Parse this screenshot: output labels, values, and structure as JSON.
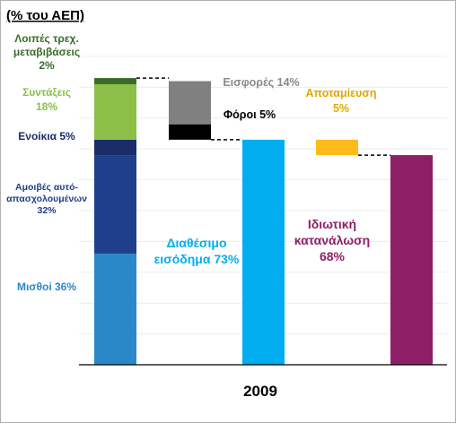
{
  "chart_data": {
    "type": "bar",
    "title": "(% του ΑΕΠ)",
    "xlabel": "2009",
    "ylabel": "",
    "ylim": [
      0,
      100
    ],
    "grid": true,
    "columns": [
      {
        "name": "income-sources",
        "segments": [
          {
            "label_lines": [
              "Μισθοί 36%"
            ],
            "value": 36,
            "color": "#2a88c8",
            "label_color": "#2a88c8"
          },
          {
            "label_lines": [
              "Αμοιβές αυτό-",
              "απασχολουμένων",
              "32%"
            ],
            "value": 32,
            "color": "#203f8a",
            "label_color": "#203f8a"
          },
          {
            "label_lines": [
              "Ενοίκια 5%"
            ],
            "value": 5,
            "color": "#1a2c6a",
            "label_color": "#1a2c6a"
          },
          {
            "label_lines": [
              "Συντάξεις",
              "18%"
            ],
            "value": 18,
            "color": "#8cbf48",
            "label_color": "#8cbf48"
          },
          {
            "label_lines": [
              "Λοιπές τρεχ.",
              "μεταβιβάσεις",
              "2%"
            ],
            "value": 2,
            "color": "#3a6b28",
            "label_color": "#3a6b28"
          }
        ]
      },
      {
        "name": "deductions",
        "segments": [
          {
            "label_lines": [
              "Φόροι 5%"
            ],
            "value": 5,
            "color": "#000000",
            "label_color": "#000000",
            "start": 73
          },
          {
            "label_lines": [
              "Εισφορές 14%"
            ],
            "value": 14,
            "color": "#808080",
            "label_color": "#8a8a8a",
            "start": 78
          }
        ]
      },
      {
        "name": "disposable-income",
        "segments": [
          {
            "label_lines": [
              "Διαθέσιμο",
              "εισόδημα 73%"
            ],
            "value": 73,
            "color": "#00aeef",
            "label_color": "#00aeef",
            "start": 0
          }
        ]
      },
      {
        "name": "savings",
        "segments": [
          {
            "label_lines": [
              "Αποταμίευση",
              "5%"
            ],
            "value": 5,
            "color": "#ffbb1c",
            "label_color": "#e0a800",
            "start": 68
          }
        ]
      },
      {
        "name": "private-consumption",
        "segments": [
          {
            "label_lines": [
              "Ιδιωτική",
              "κατανάλωση",
              "68%"
            ],
            "value": 68,
            "color": "#8e1f66",
            "label_color": "#8e1f66",
            "start": 0
          }
        ]
      }
    ]
  }
}
